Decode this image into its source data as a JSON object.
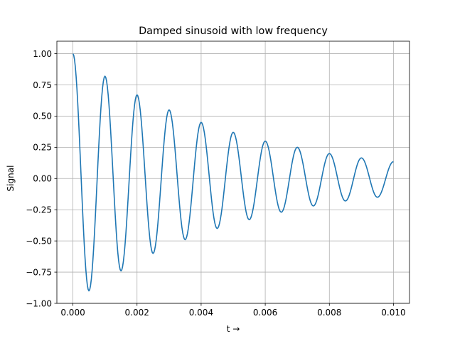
{
  "chart_data": {
    "type": "line",
    "title": "Damped sinusoid with low frequency",
    "xlabel": "t →",
    "ylabel": "Signal",
    "xlim": [
      -0.0005,
      0.0105
    ],
    "ylim": [
      -1.0,
      1.1
    ],
    "grid": true,
    "x_ticks": [
      0.0,
      0.002,
      0.004,
      0.006,
      0.008,
      0.01
    ],
    "x_tick_labels": [
      "0.000",
      "0.002",
      "0.004",
      "0.006",
      "0.008",
      "0.010"
    ],
    "y_ticks": [
      -1.0,
      -0.75,
      -0.5,
      -0.25,
      0.0,
      0.25,
      0.5,
      0.75,
      1.0
    ],
    "y_tick_labels": [
      "−1.00",
      "−0.75",
      "−0.50",
      "−0.25",
      "0.00",
      "0.25",
      "0.50",
      "0.75",
      "1.00"
    ],
    "series": [
      {
        "color": "#1f77b4",
        "x": [
          0.0,
          0.0005,
          0.001,
          0.0015,
          0.002,
          0.0025,
          0.003,
          0.0035,
          0.004,
          0.0045,
          0.005,
          0.0055,
          0.006,
          0.0065,
          0.007,
          0.0075,
          0.008,
          0.0085,
          0.009,
          0.0095,
          0.01
        ],
        "values": [
          1.0,
          -0.9,
          0.82,
          -0.74,
          0.67,
          -0.6,
          0.55,
          -0.49,
          0.45,
          -0.4,
          0.37,
          -0.33,
          0.3,
          -0.27,
          0.25,
          -0.22,
          0.2,
          -0.18,
          0.165,
          -0.15,
          0.135
        ]
      }
    ]
  },
  "colors": {
    "line": "#1f77b4",
    "grid": "#b0b0b0",
    "axes": "#000000",
    "background": "#ffffff"
  }
}
